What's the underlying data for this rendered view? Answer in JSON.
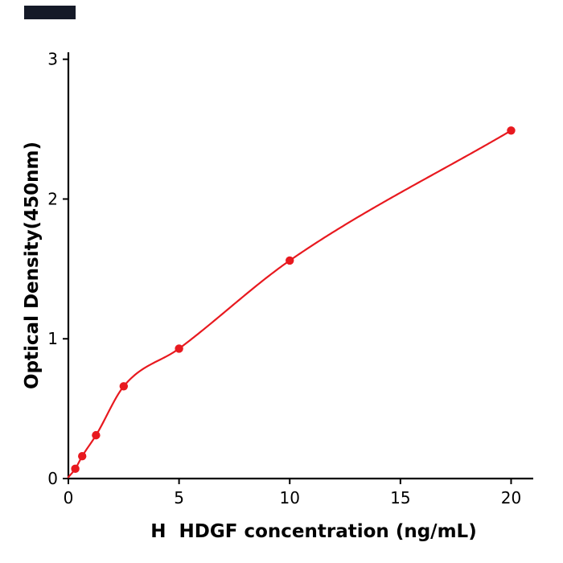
{
  "page": {
    "background": "#ffffff"
  },
  "corner_mark": {
    "color": "#151a28"
  },
  "chart_data": {
    "type": "scatter",
    "title": "",
    "xlabel": "H  HDGF concentration (ng/mL)",
    "ylabel": "Optical Density(450nm)",
    "x": [
      0.3125,
      0.625,
      1.25,
      2.5,
      5,
      10,
      20
    ],
    "y": [
      0.07,
      0.16,
      0.31,
      0.66,
      0.93,
      1.56,
      2.49
    ],
    "curve_start": [
      0,
      0.01
    ],
    "curve_style": "smooth-through-points",
    "xticks": [
      0,
      5,
      10,
      15,
      20
    ],
    "yticks": [
      0,
      1,
      2,
      3
    ],
    "xlim": [
      0,
      21
    ],
    "ylim": [
      0,
      3.05
    ],
    "point_color": "#e8191f",
    "line_color": "#e8191f",
    "axis_color": "#000000",
    "grid": false,
    "legend": "none"
  }
}
